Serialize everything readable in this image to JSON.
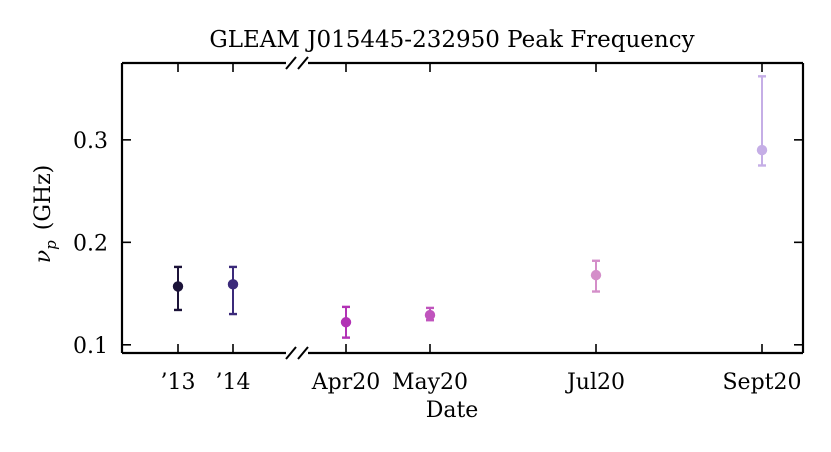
{
  "chart_data": {
    "type": "scatter",
    "title": "GLEAM J015445-232950 Peak Frequency",
    "xlabel": "Date",
    "ylabel_main": "ν",
    "ylabel_sub": "p",
    "ylabel_unit": "(GHz)",
    "ylim": [
      0.092,
      0.375
    ],
    "yticks": [
      {
        "value": 0.1,
        "label": "0.1"
      },
      {
        "value": 0.2,
        "label": "0.2"
      },
      {
        "value": 0.3,
        "label": "0.3"
      }
    ],
    "x_axis_broken": true,
    "points": [
      {
        "label": "’13",
        "y": 0.157,
        "y_low": 0.134,
        "y_high": 0.176,
        "color": "#1c1339"
      },
      {
        "label": "’14",
        "y": 0.159,
        "y_low": 0.13,
        "y_high": 0.176,
        "color": "#3b2a7a"
      },
      {
        "label": "Apr20",
        "y": 0.122,
        "y_low": 0.107,
        "y_high": 0.137,
        "color": "#b232b5"
      },
      {
        "label": "May20",
        "y": 0.129,
        "y_low": 0.124,
        "y_high": 0.136,
        "color": "#c054bd"
      },
      {
        "label": "Jul20",
        "y": 0.168,
        "y_low": 0.152,
        "y_high": 0.182,
        "color": "#d48ec9"
      },
      {
        "label": "Sept20",
        "y": 0.29,
        "y_low": 0.275,
        "y_high": 0.362,
        "color": "#c5aee6"
      }
    ]
  }
}
